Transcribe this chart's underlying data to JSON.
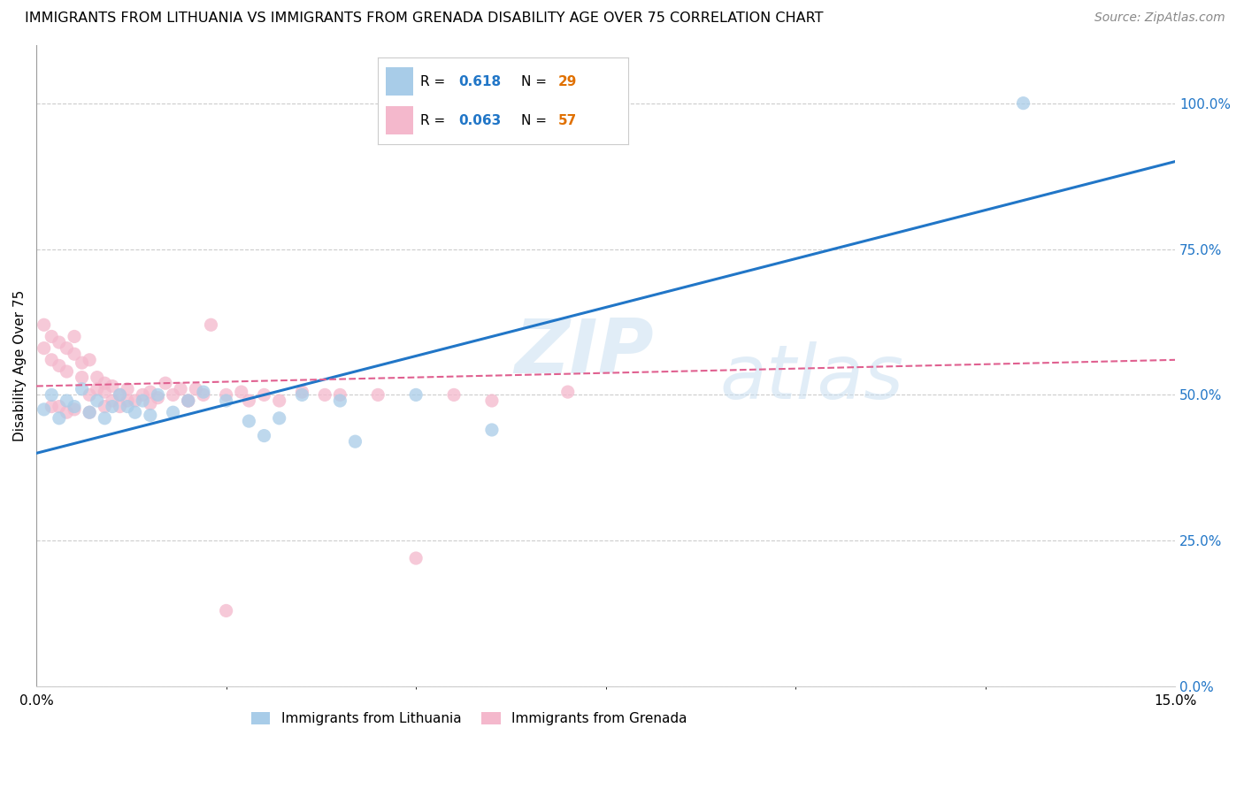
{
  "title": "IMMIGRANTS FROM LITHUANIA VS IMMIGRANTS FROM GRENADA DISABILITY AGE OVER 75 CORRELATION CHART",
  "source": "Source: ZipAtlas.com",
  "ylabel": "Disability Age Over 75",
  "ylabel_right_ticks": [
    "0.0%",
    "25.0%",
    "50.0%",
    "75.0%",
    "100.0%"
  ],
  "ylabel_right_vals": [
    0.0,
    0.25,
    0.5,
    0.75,
    1.0
  ],
  "xmin": 0.0,
  "xmax": 0.15,
  "ymin": 0.0,
  "ymax": 1.1,
  "watermark_line1": "ZIP",
  "watermark_line2": "atlas",
  "legend_lithuania_r": "0.618",
  "legend_lithuania_n": "29",
  "legend_grenada_r": "0.063",
  "legend_grenada_n": "57",
  "color_lithuania": "#a8cce8",
  "color_grenada": "#f4b8cc",
  "color_lithuania_line": "#2176c7",
  "color_grenada_line": "#e06090",
  "lithuania_x": [
    0.001,
    0.002,
    0.003,
    0.004,
    0.005,
    0.006,
    0.007,
    0.008,
    0.009,
    0.01,
    0.011,
    0.012,
    0.013,
    0.014,
    0.015,
    0.016,
    0.018,
    0.02,
    0.022,
    0.025,
    0.028,
    0.03,
    0.032,
    0.035,
    0.04,
    0.042,
    0.05,
    0.06,
    0.13
  ],
  "lithuania_y": [
    0.475,
    0.5,
    0.46,
    0.49,
    0.48,
    0.51,
    0.47,
    0.49,
    0.46,
    0.48,
    0.5,
    0.48,
    0.47,
    0.49,
    0.465,
    0.5,
    0.47,
    0.49,
    0.505,
    0.49,
    0.455,
    0.43,
    0.46,
    0.5,
    0.49,
    0.42,
    0.5,
    0.44,
    1.0
  ],
  "grenada_x": [
    0.001,
    0.001,
    0.002,
    0.002,
    0.003,
    0.003,
    0.004,
    0.004,
    0.005,
    0.005,
    0.006,
    0.006,
    0.007,
    0.007,
    0.008,
    0.008,
    0.009,
    0.009,
    0.01,
    0.01,
    0.011,
    0.011,
    0.012,
    0.013,
    0.014,
    0.015,
    0.016,
    0.017,
    0.018,
    0.019,
    0.02,
    0.021,
    0.022,
    0.023,
    0.025,
    0.027,
    0.028,
    0.03,
    0.032,
    0.035,
    0.038,
    0.04,
    0.045,
    0.05,
    0.055,
    0.06,
    0.07,
    0.002,
    0.003,
    0.004,
    0.005,
    0.007,
    0.009,
    0.012,
    0.015,
    0.02,
    0.025
  ],
  "grenada_y": [
    0.58,
    0.62,
    0.6,
    0.56,
    0.59,
    0.55,
    0.54,
    0.58,
    0.57,
    0.6,
    0.53,
    0.555,
    0.5,
    0.56,
    0.51,
    0.53,
    0.505,
    0.52,
    0.49,
    0.515,
    0.5,
    0.48,
    0.51,
    0.49,
    0.5,
    0.505,
    0.495,
    0.52,
    0.5,
    0.51,
    0.49,
    0.51,
    0.5,
    0.62,
    0.5,
    0.505,
    0.49,
    0.5,
    0.49,
    0.505,
    0.5,
    0.5,
    0.5,
    0.22,
    0.5,
    0.49,
    0.505,
    0.48,
    0.48,
    0.47,
    0.475,
    0.47,
    0.48,
    0.49,
    0.485,
    0.49,
    0.13
  ],
  "lith_line_x0": 0.0,
  "lith_line_y0": 0.4,
  "lith_line_x1": 0.15,
  "lith_line_y1": 0.9,
  "gren_line_x0": 0.0,
  "gren_line_y0": 0.515,
  "gren_line_x1": 0.15,
  "gren_line_y1": 0.56
}
